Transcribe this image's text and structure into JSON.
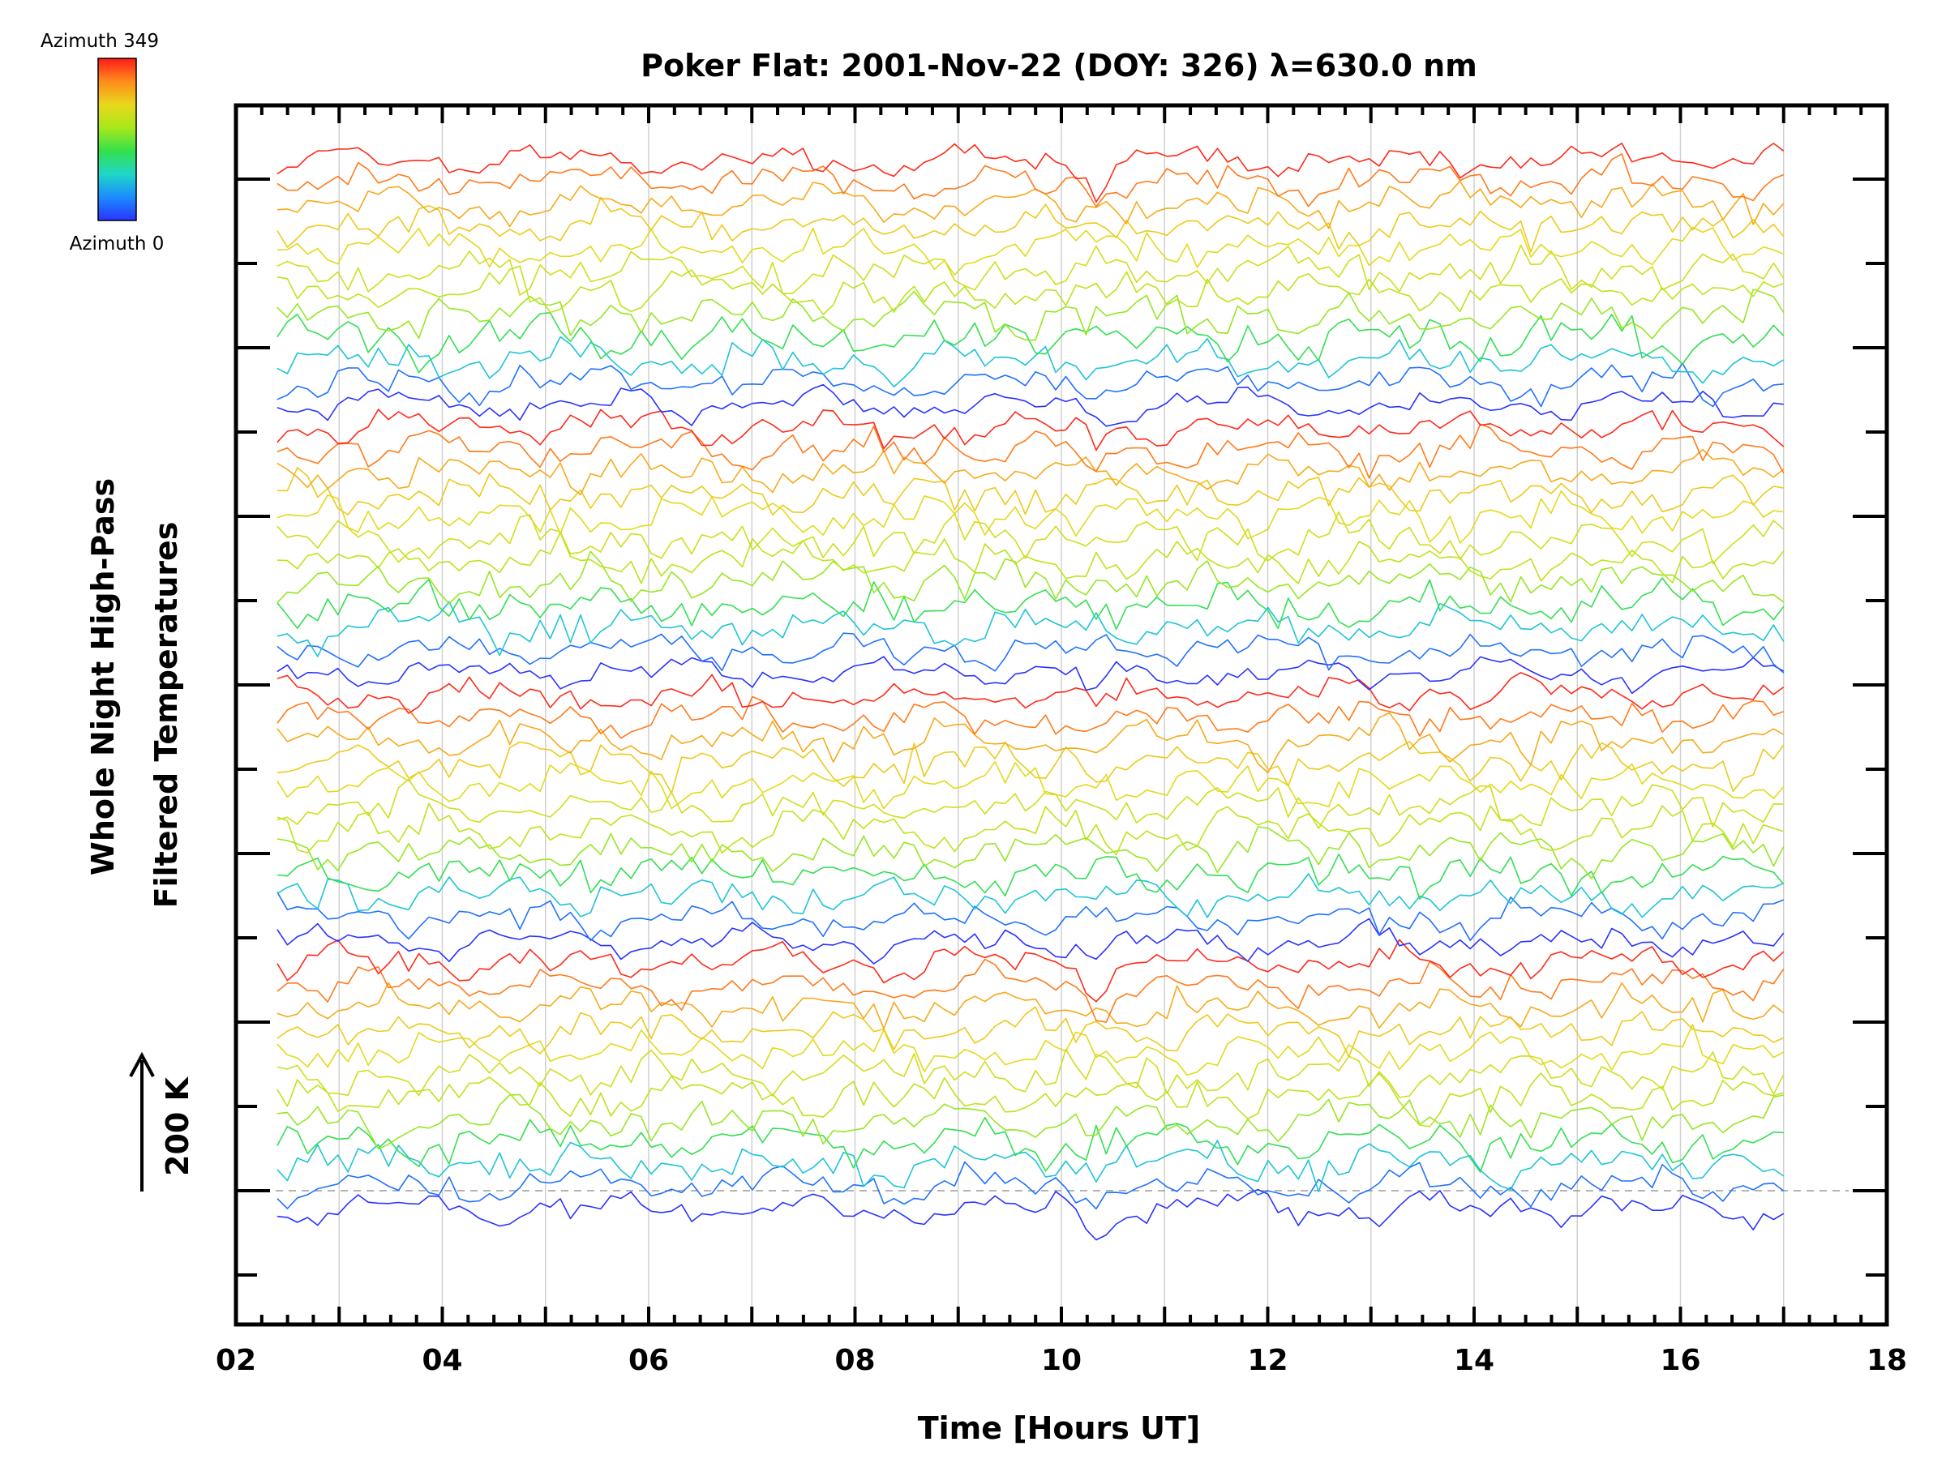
{
  "chart_data": {
    "type": "line",
    "title": "Poker Flat: 2001-Nov-22 (DOY: 326) λ=630.0 nm",
    "xlabel": "Time [Hours UT]",
    "ylabel_line1": "Whole Night High-Pass",
    "ylabel_line2": "Filtered Temperatures",
    "scale_label": "200 K",
    "scale_kelvin": 200,
    "xlim": [
      2,
      18
    ],
    "x_tick_labels": [
      "02",
      "04",
      "06",
      "08",
      "10",
      "12",
      "14",
      "16",
      "18"
    ],
    "x_tick_values": [
      2,
      4,
      6,
      8,
      10,
      12,
      14,
      16,
      18
    ],
    "data_time_range": [
      2.4,
      17.0
    ],
    "grid_x": true,
    "grid_x_values": [
      3,
      4,
      5,
      6,
      7,
      8,
      9,
      10,
      11,
      12,
      13,
      14,
      15,
      16,
      17
    ],
    "n_traces": 48,
    "trace_offset_kelvin": 80,
    "colorbar": {
      "top_label": "Azimuth 349",
      "bottom_label": "Azimuth 0",
      "azimuth_min": 0,
      "azimuth_max": 349,
      "colormap": [
        "#2a33ff",
        "#1b8bff",
        "#1fd7c8",
        "#33e04a",
        "#a8e81b",
        "#e8d81b",
        "#ff8c1a",
        "#ff1a1a"
      ]
    }
  }
}
